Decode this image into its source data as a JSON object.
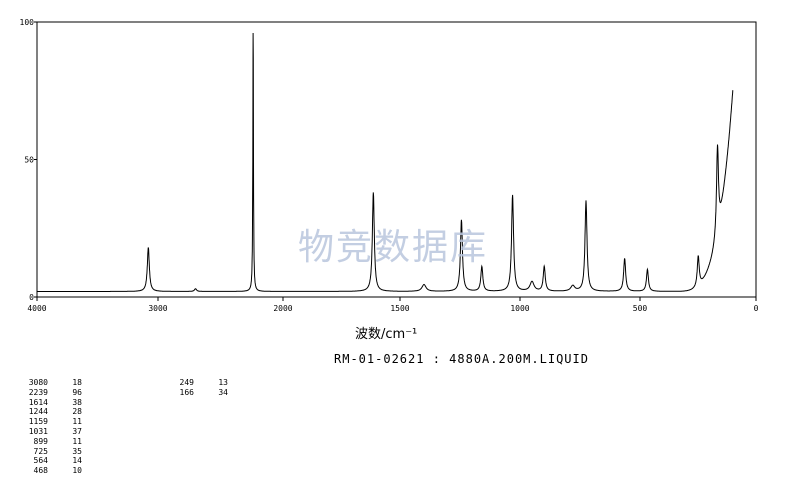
{
  "chart_data": {
    "type": "line",
    "xlabel": "波数/cm⁻¹",
    "ylabel": "",
    "xlim": [
      4000,
      0
    ],
    "ylim": [
      0,
      100
    ],
    "x_ticks": [
      "4000",
      "3000",
      "2000",
      "1500",
      "1000",
      "500",
      "0"
    ],
    "y_ticks": [
      "0",
      "50",
      "100"
    ],
    "peaks": [
      {
        "x": 3080,
        "y": 18
      },
      {
        "x": 2239,
        "y": 96
      },
      {
        "x": 1614,
        "y": 38
      },
      {
        "x": 1244,
        "y": 28
      },
      {
        "x": 1159,
        "y": 11
      },
      {
        "x": 1031,
        "y": 37
      },
      {
        "x": 899,
        "y": 11
      },
      {
        "x": 725,
        "y": 35
      },
      {
        "x": 564,
        "y": 14
      },
      {
        "x": 468,
        "y": 10
      },
      {
        "x": 249,
        "y": 13
      },
      {
        "x": 166,
        "y": 34
      }
    ],
    "baseline": 2,
    "rise_end": {
      "x": 100,
      "y": 83
    }
  },
  "watermark": "物竞数据库",
  "sample_line": "RM-01-02621 : 4880A.200M.LIQUID",
  "peak_table_left": [
    {
      "w": "3080",
      "i": "18"
    },
    {
      "w": "2239",
      "i": "96"
    },
    {
      "w": "1614",
      "i": "38"
    },
    {
      "w": "1244",
      "i": "28"
    },
    {
      "w": "1159",
      "i": "11"
    },
    {
      "w": "1031",
      "i": "37"
    },
    {
      "w": "899",
      "i": "11"
    },
    {
      "w": "725",
      "i": "35"
    },
    {
      "w": "564",
      "i": "14"
    },
    {
      "w": "468",
      "i": "10"
    }
  ],
  "peak_table_right": [
    {
      "w": "249",
      "i": "13"
    },
    {
      "w": "166",
      "i": "34"
    }
  ]
}
